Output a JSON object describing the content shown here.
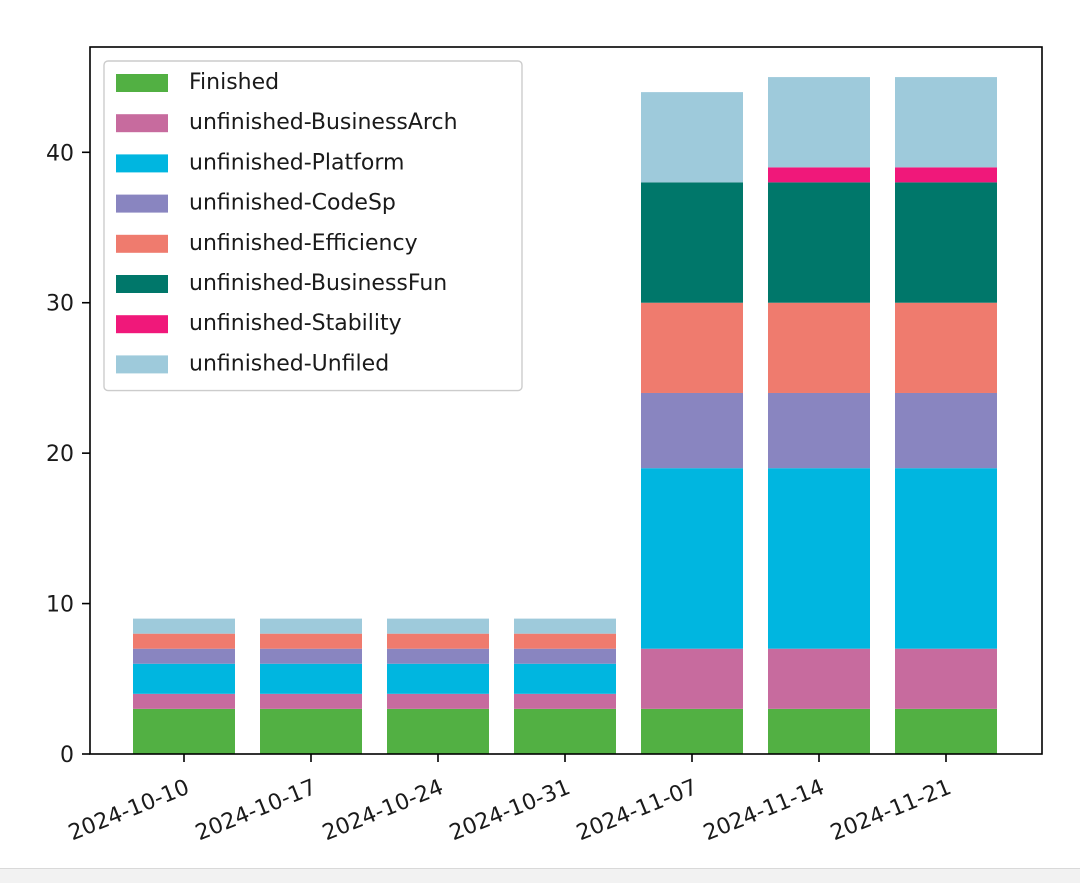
{
  "chart_data": {
    "type": "bar",
    "stacked": true,
    "title": "",
    "xlabel": "",
    "ylabel": "",
    "ylim": [
      0,
      47
    ],
    "yticks": [
      0,
      10,
      20,
      30,
      40
    ],
    "grid": false,
    "legend_position": "top-left",
    "categories": [
      "2024-10-10",
      "2024-10-17",
      "2024-10-24",
      "2024-10-31",
      "2024-11-07",
      "2024-11-14",
      "2024-11-21"
    ],
    "series": [
      {
        "name": "Finished",
        "color": "#52b043",
        "values": [
          3,
          3,
          3,
          3,
          3,
          3,
          3
        ]
      },
      {
        "name": "unfinished-BusinessArch",
        "color": "#c76b9e",
        "values": [
          1,
          1,
          1,
          1,
          4,
          4,
          4
        ]
      },
      {
        "name": "unfinished-Platform",
        "color": "#00b6e0",
        "values": [
          2,
          2,
          2,
          2,
          12,
          12,
          12
        ]
      },
      {
        "name": "unfinished-CodeSp",
        "color": "#8985c0",
        "values": [
          1,
          1,
          1,
          1,
          5,
          5,
          5
        ]
      },
      {
        "name": "unfinished-Efficiency",
        "color": "#ef7b6e",
        "values": [
          1,
          1,
          1,
          1,
          6,
          6,
          6
        ]
      },
      {
        "name": "unfinished-BusinessFun",
        "color": "#00776a",
        "values": [
          0,
          0,
          0,
          0,
          8,
          8,
          8
        ]
      },
      {
        "name": "unfinished-Stability",
        "color": "#f0187a",
        "values": [
          0,
          0,
          0,
          0,
          0,
          1,
          1
        ]
      },
      {
        "name": "unfinished-Unfiled",
        "color": "#9ecadb",
        "values": [
          1,
          1,
          1,
          1,
          6,
          6,
          6
        ]
      }
    ]
  }
}
